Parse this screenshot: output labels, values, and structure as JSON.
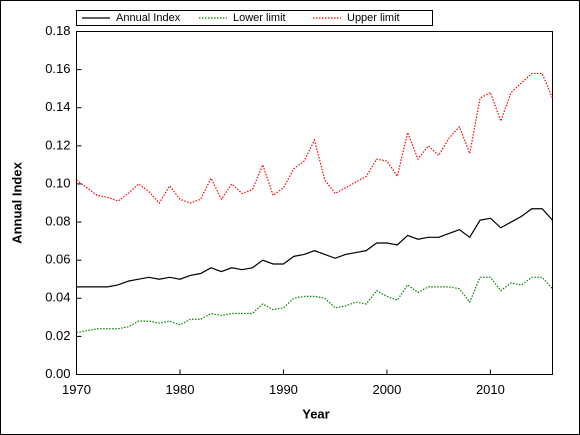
{
  "chart_data": {
    "type": "line",
    "xlabel": "Year",
    "ylabel": "Annual Index",
    "x": [
      1970,
      1971,
      1972,
      1973,
      1974,
      1975,
      1976,
      1977,
      1978,
      1979,
      1980,
      1981,
      1982,
      1983,
      1984,
      1985,
      1986,
      1987,
      1988,
      1989,
      1990,
      1991,
      1992,
      1993,
      1994,
      1995,
      1996,
      1997,
      1998,
      1999,
      2000,
      2001,
      2002,
      2003,
      2004,
      2005,
      2006,
      2007,
      2008,
      2009,
      2010,
      2011,
      2012,
      2013,
      2014,
      2015,
      2016
    ],
    "series": [
      {
        "name": "Annual Index",
        "color": "#000000",
        "dash": false,
        "values": [
          0.046,
          0.046,
          0.046,
          0.046,
          0.047,
          0.049,
          0.05,
          0.051,
          0.05,
          0.051,
          0.05,
          0.052,
          0.053,
          0.056,
          0.054,
          0.056,
          0.055,
          0.056,
          0.06,
          0.058,
          0.058,
          0.062,
          0.063,
          0.065,
          0.063,
          0.061,
          0.063,
          0.064,
          0.065,
          0.069,
          0.069,
          0.068,
          0.073,
          0.071,
          0.072,
          0.072,
          0.074,
          0.076,
          0.072,
          0.081,
          0.082,
          0.077,
          0.08,
          0.083,
          0.087,
          0.087,
          0.081
        ]
      },
      {
        "name": "Lower limit",
        "color": "#008000",
        "dash": true,
        "values": [
          0.022,
          0.023,
          0.024,
          0.024,
          0.024,
          0.025,
          0.028,
          0.028,
          0.027,
          0.028,
          0.026,
          0.029,
          0.029,
          0.032,
          0.031,
          0.032,
          0.032,
          0.032,
          0.037,
          0.034,
          0.035,
          0.04,
          0.041,
          0.041,
          0.04,
          0.035,
          0.036,
          0.038,
          0.037,
          0.044,
          0.041,
          0.039,
          0.047,
          0.043,
          0.046,
          0.046,
          0.046,
          0.045,
          0.038,
          0.051,
          0.051,
          0.044,
          0.048,
          0.047,
          0.051,
          0.051,
          0.045
        ]
      },
      {
        "name": "Upper limit",
        "color": "#ff0000",
        "dash": true,
        "values": [
          0.102,
          0.098,
          0.094,
          0.093,
          0.091,
          0.095,
          0.1,
          0.096,
          0.09,
          0.099,
          0.092,
          0.09,
          0.092,
          0.103,
          0.092,
          0.1,
          0.095,
          0.097,
          0.11,
          0.094,
          0.098,
          0.108,
          0.112,
          0.123,
          0.102,
          0.095,
          0.098,
          0.101,
          0.104,
          0.113,
          0.112,
          0.104,
          0.127,
          0.113,
          0.12,
          0.115,
          0.124,
          0.13,
          0.116,
          0.145,
          0.148,
          0.133,
          0.148,
          0.153,
          0.158,
          0.158,
          0.145
        ]
      }
    ],
    "xlim": [
      1970,
      2016
    ],
    "xticks": [
      1970,
      1980,
      1990,
      2000,
      2010
    ],
    "ylim": [
      0,
      0.18
    ],
    "yticks": [
      {
        "value": 0,
        "label": "0.00"
      },
      {
        "value": 0.02,
        "label": "0.02"
      },
      {
        "value": 0.04,
        "label": "0.04"
      },
      {
        "value": 0.06,
        "label": "0.06"
      },
      {
        "value": 0.08,
        "label": "0.08"
      },
      {
        "value": 0.1,
        "label": "0.10"
      },
      {
        "value": 0.12,
        "label": "0.12"
      },
      {
        "value": 0.14,
        "label": "0.14"
      },
      {
        "value": 0.16,
        "label": "0.16"
      },
      {
        "value": 0.18,
        "label": "0.18"
      }
    ],
    "grid": false,
    "legend": "top"
  }
}
